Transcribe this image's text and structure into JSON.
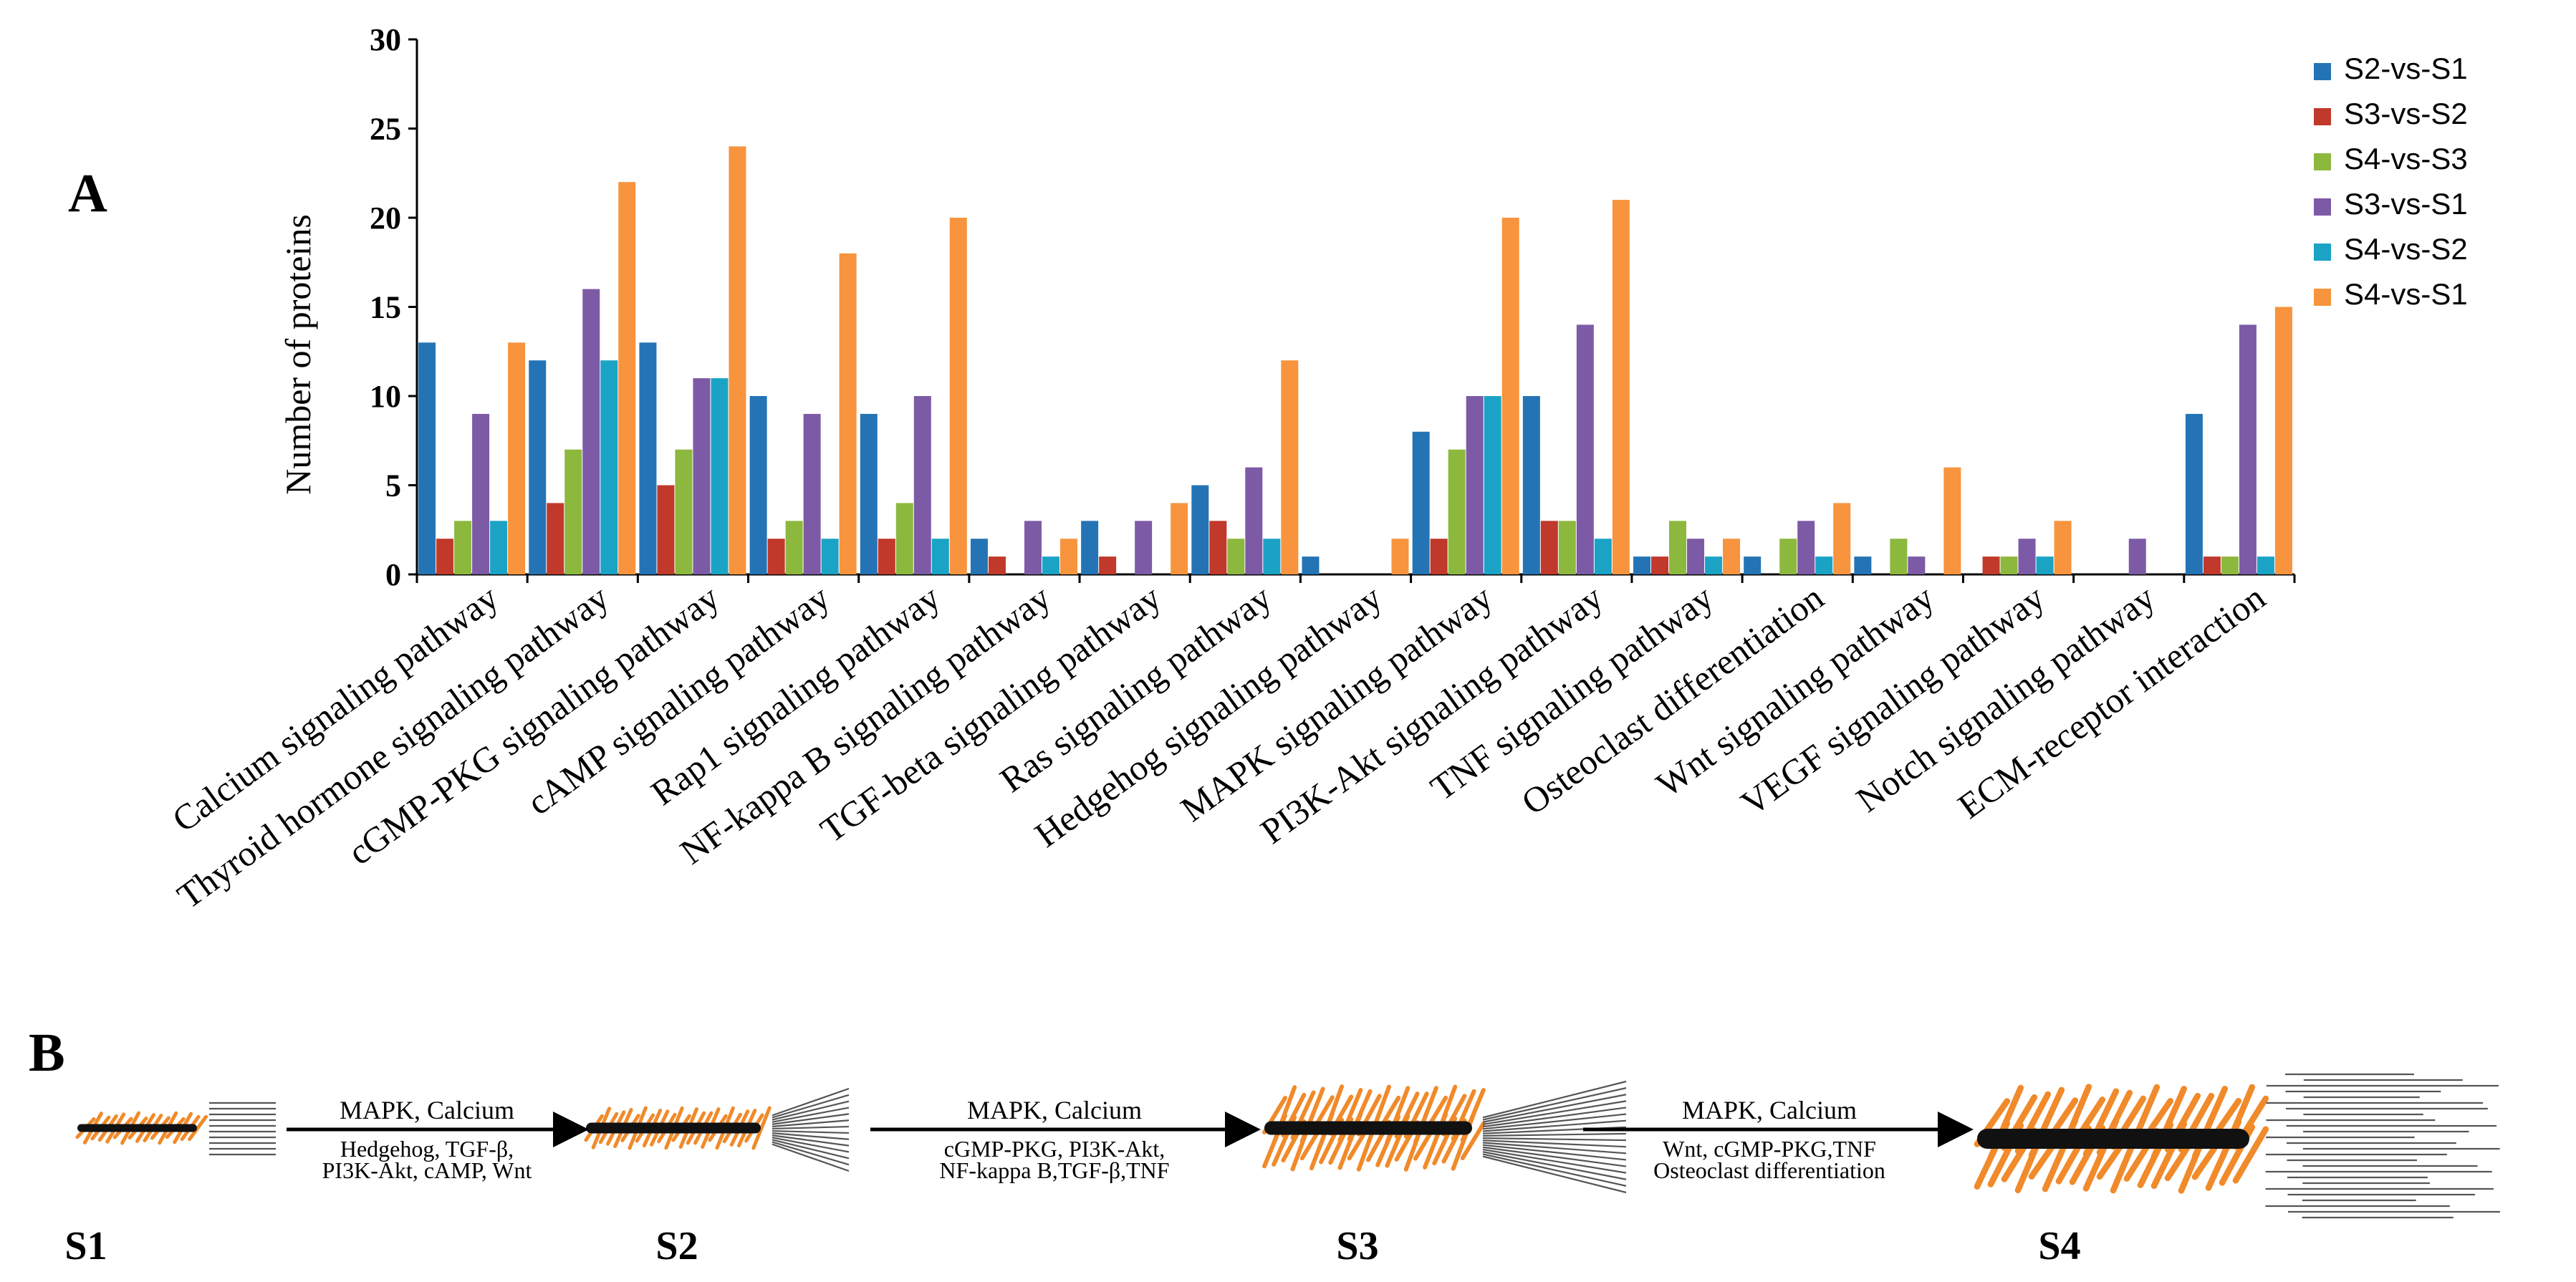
{
  "panel_a_label": "A",
  "panel_b_label": "B",
  "chart_data": {
    "type": "bar",
    "title": "",
    "xlabel": "",
    "ylabel": "Number of proteins",
    "ylim": [
      0,
      30
    ],
    "yticks": [
      0,
      5,
      10,
      15,
      20,
      25,
      30
    ],
    "grid": false,
    "legend_position": "top-right",
    "categories": [
      "Calcium signaling pathway",
      "Thyroid hormone signaling pathway",
      "cGMP-PKG signaling pathway",
      "cAMP signaling pathway",
      "Rap1 signaling pathway",
      "NF-kappa B signaling pathway",
      "TGF-beta signaling pathway",
      "Ras signaling pathway",
      "Hedgehog signaling pathway",
      "MAPK signaling pathway",
      "PI3K-Akt signaling pathway",
      "TNF signaling pathway",
      "Osteoclast differentiation",
      "Wnt signaling pathway",
      "VEGF signaling pathway",
      "Notch signaling pathway",
      "ECM-receptor interaction"
    ],
    "series": [
      {
        "name": "S2-vs-S1",
        "color": "#2474b5",
        "values": [
          13,
          12,
          13,
          10,
          9,
          2,
          3,
          5,
          1,
          8,
          10,
          1,
          1,
          1,
          0,
          0,
          9
        ]
      },
      {
        "name": "S3-vs-S2",
        "color": "#c0392b",
        "values": [
          2,
          4,
          5,
          2,
          2,
          1,
          1,
          3,
          0,
          2,
          3,
          1,
          0,
          0,
          1,
          0,
          1
        ]
      },
      {
        "name": "S4-vs-S3",
        "color": "#8cb83e",
        "values": [
          3,
          7,
          7,
          3,
          4,
          0,
          0,
          2,
          0,
          7,
          3,
          3,
          2,
          2,
          1,
          0,
          1
        ]
      },
      {
        "name": "S3-vs-S1",
        "color": "#7d5aa6",
        "values": [
          9,
          16,
          11,
          9,
          10,
          3,
          3,
          6,
          0,
          10,
          14,
          2,
          3,
          1,
          2,
          2,
          14
        ]
      },
      {
        "name": "S4-vs-S2",
        "color": "#1ba3c6",
        "values": [
          3,
          12,
          11,
          2,
          2,
          1,
          0,
          2,
          0,
          10,
          2,
          1,
          1,
          0,
          1,
          0,
          1
        ]
      },
      {
        "name": "S4-vs-S1",
        "color": "#f7943d",
        "values": [
          13,
          22,
          24,
          18,
          20,
          2,
          4,
          12,
          2,
          20,
          21,
          2,
          4,
          6,
          3,
          0,
          15
        ]
      }
    ]
  },
  "panel_b": {
    "stages": [
      "S1",
      "S2",
      "S3",
      "S4"
    ],
    "arrows": [
      {
        "top": "MAPK, Calcium",
        "bottom": [
          "Hedgehog, TGF-β,",
          "PI3K-Akt, cAMP, Wnt"
        ]
      },
      {
        "top": "MAPK, Calcium",
        "bottom": [
          "cGMP-PKG, PI3K-Akt,",
          "NF-kappa B,TGF-β,TNF"
        ]
      },
      {
        "top": "MAPK, Calcium",
        "bottom": [
          "Wnt, cGMP-PKG,TNF",
          "Osteoclast differentiation"
        ]
      }
    ],
    "colors": {
      "fin": "#f08a2a",
      "spine": "#111111",
      "line": "#555555"
    }
  }
}
